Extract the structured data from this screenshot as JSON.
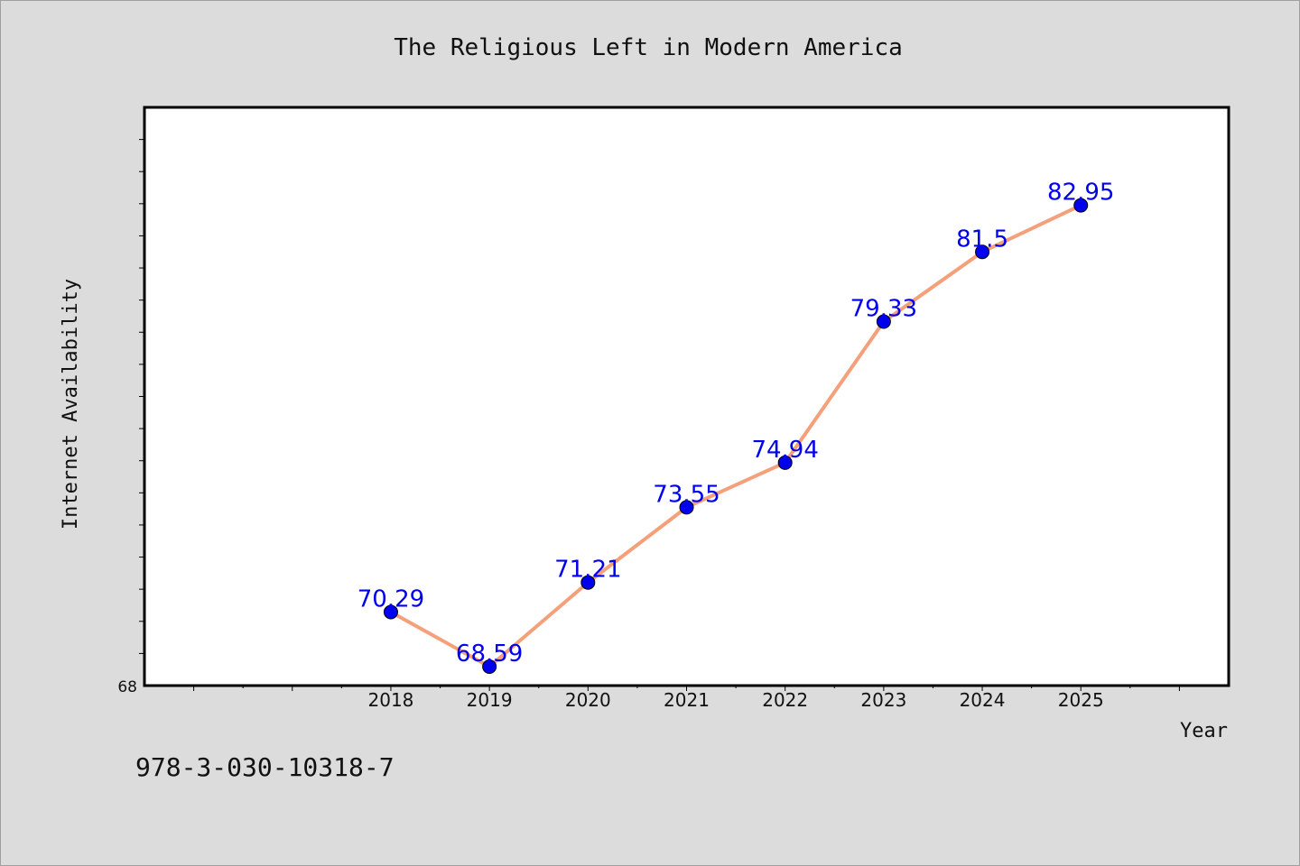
{
  "footer": {
    "code": "978-3-030-10318-7"
  },
  "colors": {
    "line": "#f4a07a",
    "marker": "#0000ee",
    "label": "#0000ee",
    "background": "#dcdcdc",
    "plot": "#ffffff"
  },
  "chart_data": {
    "type": "line",
    "title": "The Religious Left in Modern America",
    "xlabel": "Year",
    "ylabel": "Internet Availability",
    "y_tick_label": "68",
    "ylim": [
      68,
      86
    ],
    "xlim": [
      2015.5,
      2026.5
    ],
    "grid": false,
    "legend": "none",
    "categories": [
      "2018",
      "2019",
      "2020",
      "2021",
      "2022",
      "2023",
      "2024",
      "2025"
    ],
    "series": [
      {
        "x": [
          2018,
          2019,
          2020,
          2021,
          2022,
          2023,
          2024,
          2025
        ],
        "values": [
          70.29,
          68.59,
          71.21,
          73.55,
          74.94,
          79.33,
          81.5,
          82.95
        ],
        "labels": [
          "70.29",
          "68.59",
          "71.21",
          "73.55",
          "74.94",
          "79.33",
          "81.5",
          "82.95"
        ]
      }
    ]
  }
}
